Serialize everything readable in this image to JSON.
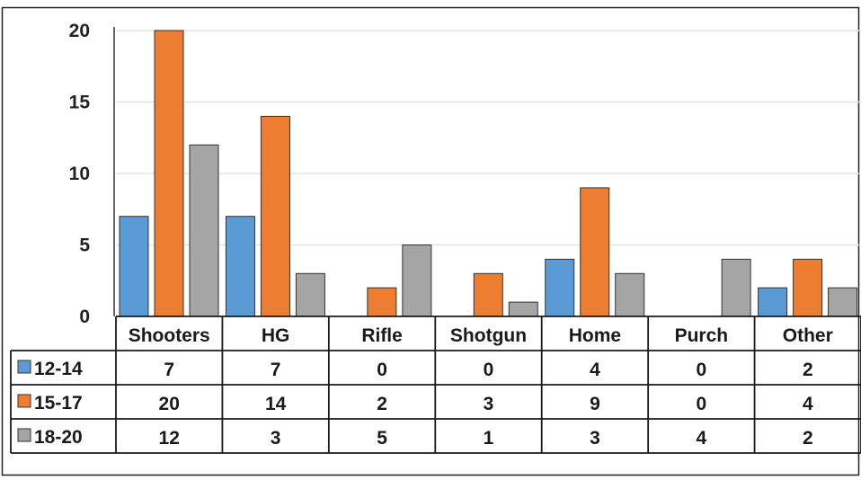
{
  "chart_data": {
    "type": "bar",
    "categories": [
      "Shooters",
      "HG",
      "Rifle",
      "Shotgun",
      "Home",
      "Purch",
      "Other"
    ],
    "series": [
      {
        "name": "12-14",
        "color": "#5b9bd5",
        "values": [
          7,
          7,
          0,
          0,
          4,
          0,
          2
        ]
      },
      {
        "name": "15-17",
        "color": "#ed7d31",
        "values": [
          20,
          14,
          2,
          3,
          9,
          0,
          4
        ]
      },
      {
        "name": "18-20",
        "color": "#a5a5a5",
        "values": [
          12,
          3,
          5,
          1,
          3,
          4,
          2
        ]
      }
    ],
    "y_ticks": [
      0,
      5,
      10,
      15,
      20
    ],
    "ylim": [
      0,
      20
    ],
    "grid": true,
    "legend": "data-table-below",
    "data_table": true
  }
}
